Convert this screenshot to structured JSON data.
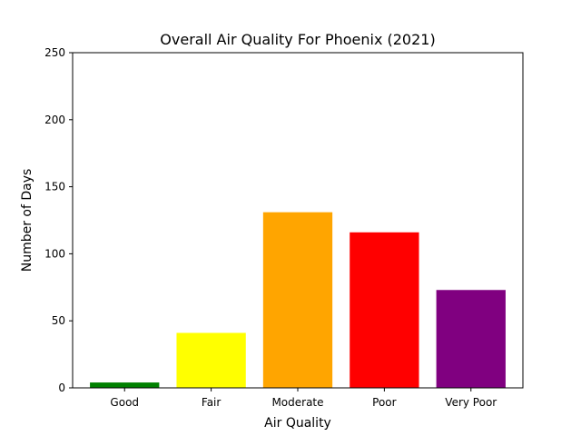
{
  "chart_data": {
    "type": "bar",
    "title": "Overall Air Quality For Phoenix (2021)",
    "xlabel": "Air Quality",
    "ylabel": "Number of Days",
    "categories": [
      "Good",
      "Fair",
      "Moderate",
      "Poor",
      "Very Poor"
    ],
    "values": [
      4,
      41,
      131,
      116,
      73
    ],
    "colors": [
      "#008000",
      "#ffff00",
      "#ffa500",
      "#ff0000",
      "#800080"
    ],
    "ylim": [
      0,
      250
    ],
    "yticks": [
      0,
      50,
      100,
      150,
      200,
      250
    ],
    "grid": false,
    "legend": "none"
  }
}
